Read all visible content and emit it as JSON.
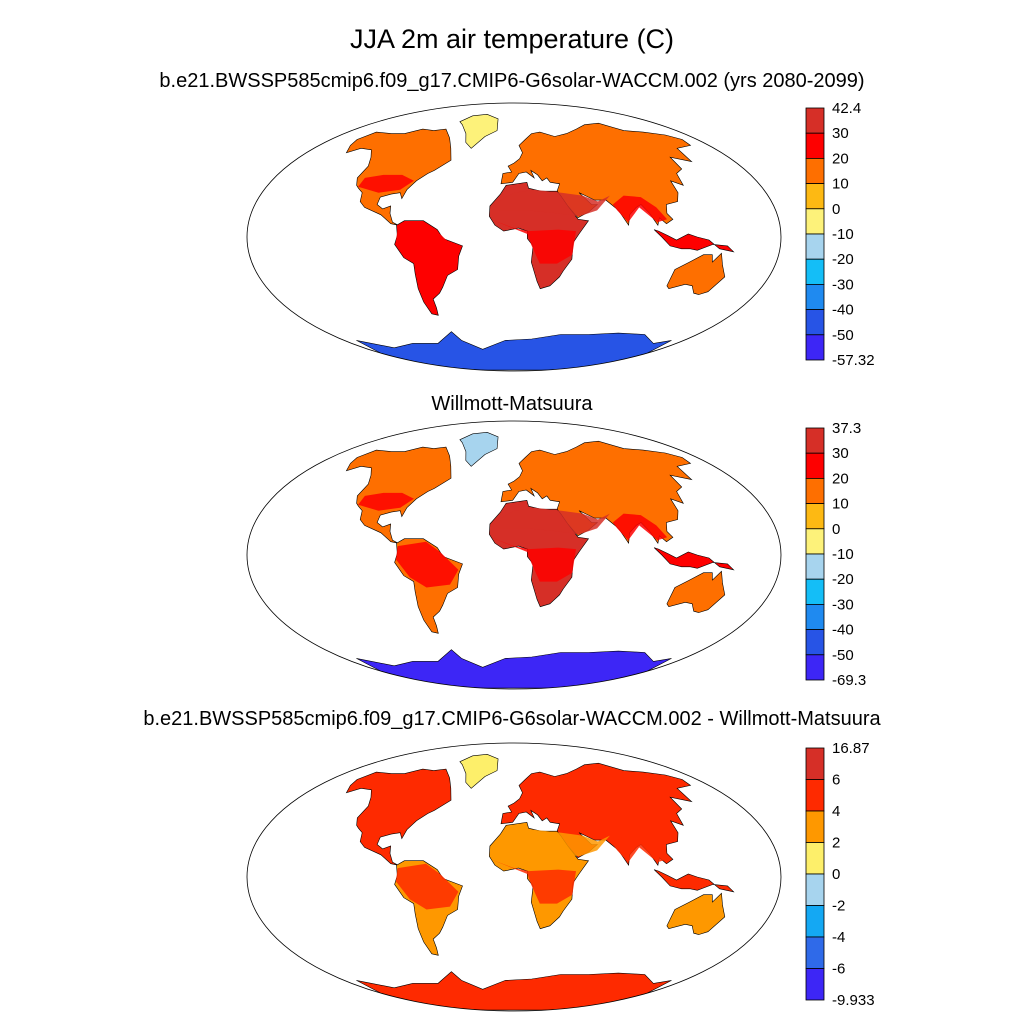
{
  "title": "JJA 2m air temperature (C)",
  "panels": [
    {
      "id": "model",
      "subtitle": "b.e21.BWSSP585cmip6.f09_g17.CMIP6-G6solar-WACCM.002 (yrs 2080-2099)",
      "colorbar": {
        "labels": [
          "42.4",
          "30",
          "20",
          "10",
          "0",
          "-10",
          "-20",
          "-30",
          "-40",
          "-50",
          "-57.32"
        ],
        "colors": [
          "#d62f27",
          "#fe0000",
          "#fe6f00",
          "#fdb913",
          "#fdf27a",
          "#a7d4ee",
          "#14bef7",
          "#1f8af0",
          "#2754e6",
          "#3d26f6"
        ]
      }
    },
    {
      "id": "obs",
      "subtitle": "Willmott-Matsuura",
      "colorbar": {
        "labels": [
          "37.3",
          "30",
          "20",
          "10",
          "0",
          "-10",
          "-20",
          "-30",
          "-40",
          "-50",
          "-69.3"
        ],
        "colors": [
          "#d62f27",
          "#fe0000",
          "#fe6f00",
          "#fdb913",
          "#fdf27a",
          "#a7d4ee",
          "#14bef7",
          "#1f8af0",
          "#2754e6",
          "#3d26f6"
        ]
      }
    },
    {
      "id": "diff",
      "subtitle": "b.e21.BWSSP585cmip6.f09_g17.CMIP6-G6solar-WACCM.002 - Willmott-Matsuura",
      "colorbar": {
        "labels": [
          "16.87",
          "6",
          "4",
          "2",
          "0",
          "-2",
          "-4",
          "-6",
          "-9.933"
        ],
        "colors": [
          "#d62f27",
          "#fe2a00",
          "#fe9800",
          "#fdef6a",
          "#a7d4ee",
          "#14a8f3",
          "#2f6ae9",
          "#3d26f6"
        ]
      }
    }
  ],
  "map_colors": {
    "model": {
      "northern_land": "#fe6f00",
      "tropics": "#fe0000",
      "deserts": "#d62f27",
      "southern_land": "#fe0000",
      "australia_south": "#fe6f00",
      "greenland": "#fdf27a",
      "antarctica": "#2754e6"
    },
    "obs": {
      "northern_land": "#fe6f00",
      "tropics": "#fe0000",
      "deserts": "#d62f27",
      "southern_land": "#fe6f00",
      "australia_south": "#fe6f00",
      "greenland": "#a7d4ee",
      "antarctica": "#3d26f6"
    },
    "diff": {
      "northern_land": "#fe2a00",
      "tropics": "#fe2a00",
      "deserts": "#fe9800",
      "southern_land": "#fe9800",
      "australia_south": "#fe9800",
      "greenland": "#fdef6a",
      "antarctica": "#fe2a00"
    }
  }
}
